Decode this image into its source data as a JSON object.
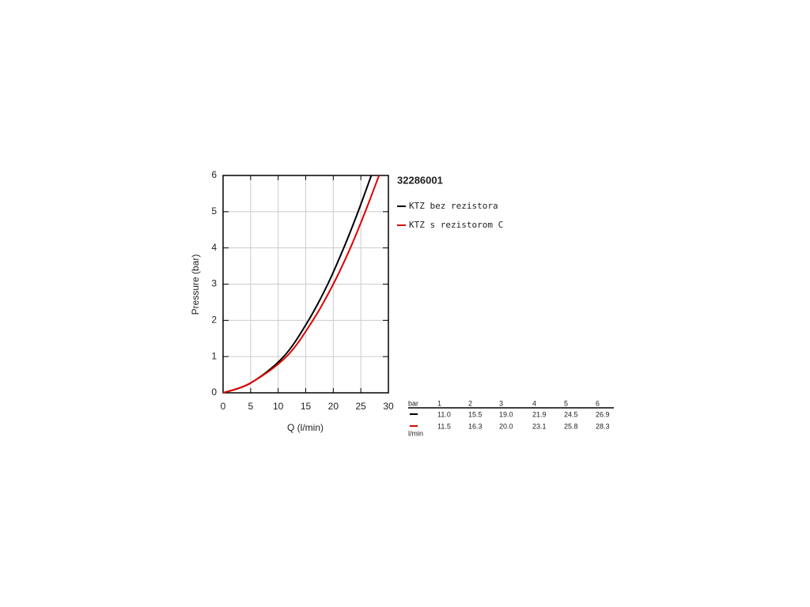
{
  "chart_data": {
    "type": "line",
    "title": "32286001",
    "x_label": "Q (l/min)",
    "y_label": "Pressure (bar)",
    "xlim": [
      0,
      30
    ],
    "ylim": [
      0,
      6
    ],
    "xticks": [
      0,
      5,
      10,
      15,
      20,
      25,
      30
    ],
    "yticks": [
      0,
      1,
      2,
      3,
      4,
      5,
      6
    ],
    "grid": true,
    "series": [
      {
        "name": "KTZ bez rezistora",
        "color": "#000000",
        "x": [
          0,
          5,
          11.0,
          15.5,
          19.0,
          21.9,
          24.5,
          26.9
        ],
        "values": [
          0,
          0.27,
          1,
          2,
          3,
          4,
          5,
          6
        ]
      },
      {
        "name": "KTZ s rezistorom C",
        "color": "#e00000",
        "x": [
          0,
          5,
          11.5,
          16.3,
          20.0,
          23.1,
          25.8,
          28.3
        ],
        "values": [
          0,
          0.27,
          1,
          2,
          3,
          4,
          5,
          6
        ]
      }
    ]
  },
  "table": {
    "header": [
      "bar",
      "1",
      "2",
      "3",
      "4",
      "5",
      "6"
    ],
    "rows": [
      [
        "11.0",
        "15.5",
        "19.0",
        "21.9",
        "24.5",
        "26.9"
      ],
      [
        "11.5",
        "16.3",
        "20.0",
        "23.1",
        "25.8",
        "28.3"
      ]
    ],
    "unit": "l/min"
  }
}
